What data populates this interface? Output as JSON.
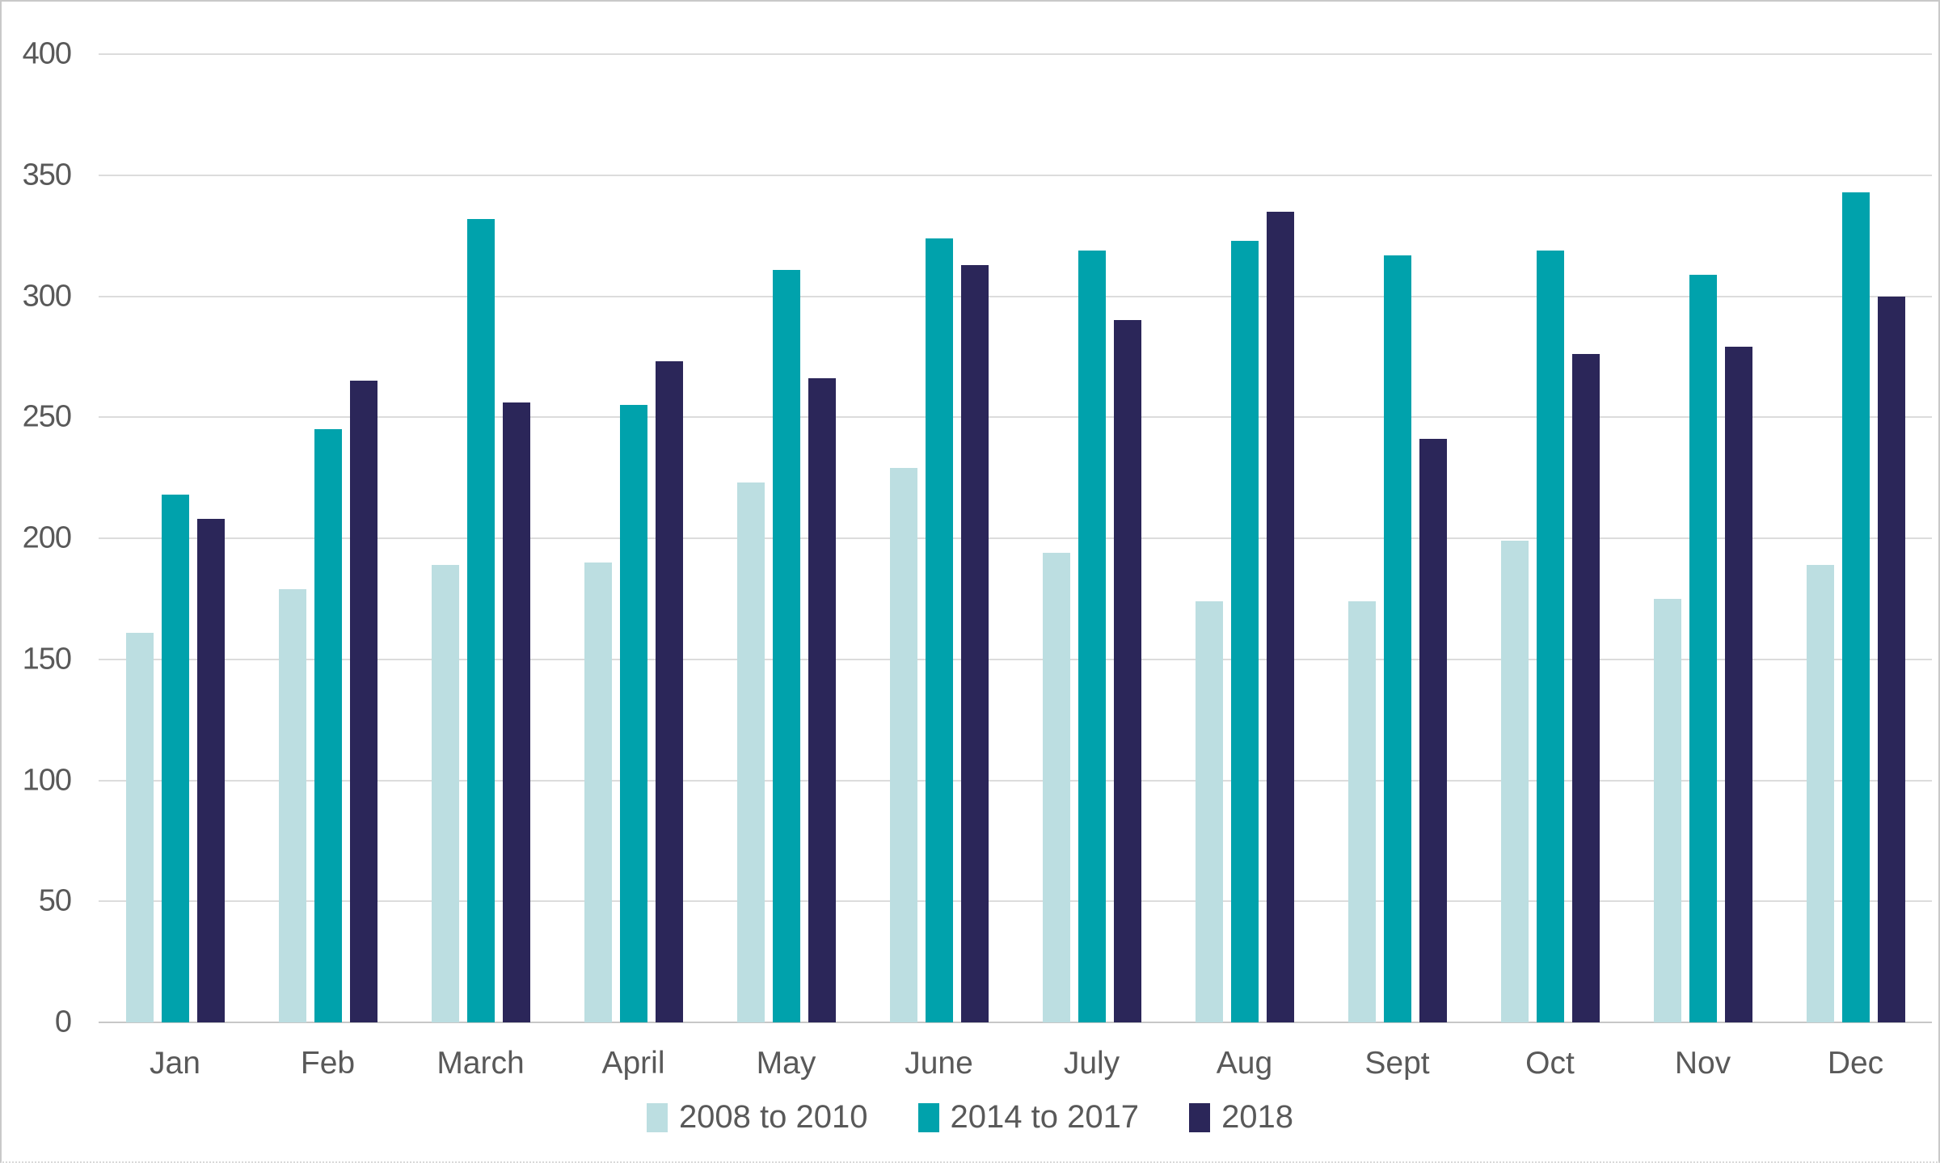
{
  "chart_data": {
    "type": "bar",
    "title": "",
    "xlabel": "",
    "ylabel": "",
    "categories": [
      "Jan",
      "Feb",
      "March",
      "April",
      "May",
      "June",
      "July",
      "Aug",
      "Sept",
      "Oct",
      "Nov",
      "Dec"
    ],
    "series": [
      {
        "name": "2008 to 2010",
        "color": "#BCDEE1",
        "values": [
          161,
          179,
          189,
          190,
          223,
          229,
          194,
          174,
          174,
          199,
          175,
          189
        ]
      },
      {
        "name": "2014 to 2017",
        "color": "#00A2AC",
        "values": [
          218,
          245,
          332,
          255,
          311,
          324,
          319,
          323,
          317,
          319,
          309,
          343
        ]
      },
      {
        "name": "2018",
        "color": "#2B2659",
        "values": [
          208,
          265,
          256,
          273,
          266,
          313,
          290,
          335,
          241,
          276,
          279,
          300
        ]
      }
    ],
    "ylim": [
      0,
      400
    ],
    "yticks": [
      0,
      50,
      100,
      150,
      200,
      250,
      300,
      350,
      400
    ],
    "grid": "horizontal",
    "legend_position": "bottom"
  },
  "colors": {
    "gridline": "#dcdcdc",
    "axis_line": "#c7c7c7",
    "tick_text": "#595959",
    "background": "#ffffff"
  }
}
